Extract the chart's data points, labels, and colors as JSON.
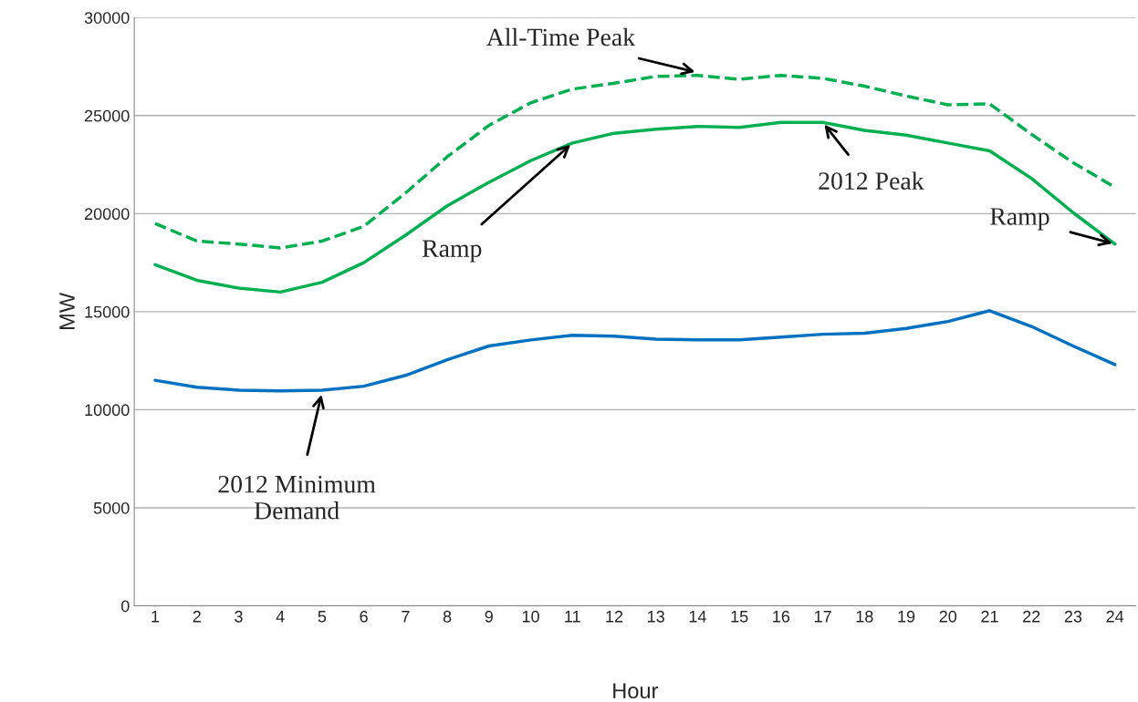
{
  "chart_data": {
    "type": "line",
    "ylabel": "MW",
    "xlabel": "Hour",
    "categories": [
      "1",
      "2",
      "3",
      "4",
      "5",
      "6",
      "7",
      "8",
      "9",
      "10",
      "11",
      "12",
      "13",
      "14",
      "15",
      "16",
      "17",
      "18",
      "19",
      "20",
      "21",
      "22",
      "23",
      "24"
    ],
    "series": [
      {
        "color": "#00b050",
        "line_style": "dashed",
        "values": [
          19500,
          18600,
          18450,
          18250,
          18600,
          19350,
          21050,
          22900,
          24500,
          25650,
          26350,
          26650,
          27000,
          27050,
          26850,
          27050,
          26900,
          26500,
          26000,
          25550,
          25600,
          24050,
          22600,
          21350
        ]
      },
      {
        "color": "#00b050",
        "line_style": "solid",
        "values": [
          17400,
          16600,
          16200,
          16000,
          16500,
          17500,
          18900,
          20400,
          21600,
          22700,
          23600,
          24100,
          24300,
          24450,
          24400,
          24650,
          24650,
          24250,
          24000,
          23600,
          23200,
          21800,
          20050,
          18450
        ]
      },
      {
        "color": "#0070c0",
        "line_style": "solid",
        "values": [
          11500,
          11150,
          11000,
          10960,
          11000,
          11200,
          11750,
          12550,
          13250,
          13560,
          13800,
          13750,
          13600,
          13560,
          13560,
          13700,
          13850,
          13900,
          14150,
          14500,
          15050,
          14250,
          13250,
          12300
        ]
      }
    ],
    "ylim": [
      0,
      30000
    ],
    "yticks": [
      0,
      5000,
      10000,
      15000,
      20000,
      25000,
      30000
    ],
    "grid": "y",
    "legend": false,
    "marker": "none",
    "annotations": [
      {
        "text": "All-Time Peak",
        "x": "14",
        "y": 27200
      },
      {
        "text": "2012 Peak",
        "x": "17",
        "y": 24650
      },
      {
        "text": "Ramp",
        "x": "11",
        "y": 23600
      },
      {
        "text": "Ramp",
        "x": "24",
        "y": 18450
      },
      {
        "text": "2012 Minimum\nDemand",
        "x": "5",
        "y": 10900
      }
    ]
  }
}
